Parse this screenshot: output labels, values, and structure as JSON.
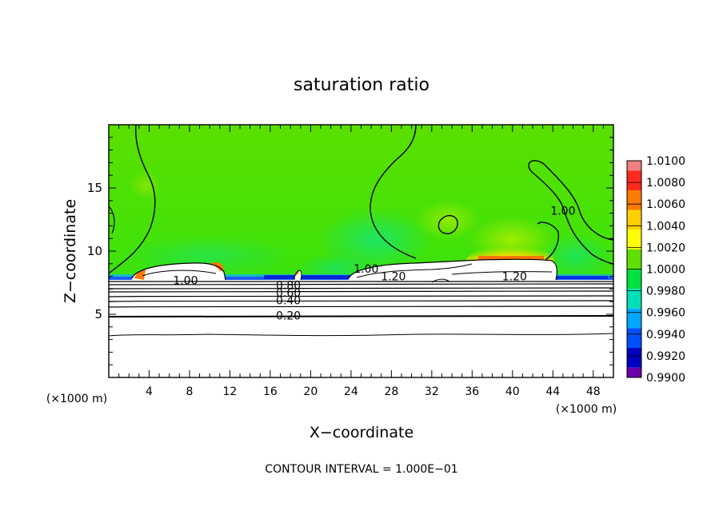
{
  "chart_data": {
    "type": "heatmap",
    "title": "saturation ratio",
    "xlabel": "X−coordinate",
    "ylabel": "Z−coordinate",
    "x_unit_left": "(×1000 m)",
    "x_unit_right": "(×1000 m)",
    "xlim": [
      0,
      50
    ],
    "ylim": [
      0,
      20
    ],
    "x_ticks": [
      4,
      8,
      12,
      16,
      20,
      24,
      28,
      32,
      36,
      40,
      44,
      48
    ],
    "y_ticks": [
      5,
      10,
      15
    ],
    "colorbar": {
      "levels": [
        1.01,
        1.008,
        1.006,
        1.004,
        1.002,
        1.0,
        0.998,
        0.996,
        0.994,
        0.992,
        0.99
      ],
      "labels": [
        "1.0100",
        "1.0080",
        "1.0060",
        "1.0040",
        "1.0020",
        "1.0000",
        "0.9980",
        "0.9960",
        "0.9940",
        "0.9920",
        "0.9900"
      ],
      "colors": [
        "#f08080",
        "#ff2a1e",
        "#ff7a00",
        "#ffd000",
        "#ffff00",
        "#5ee000",
        "#00e040",
        "#00e0b8",
        "#00a8ff",
        "#0050ff",
        "#0000c0",
        "#6a00a8"
      ]
    },
    "contour_labels": [
      {
        "text": "1.00",
        "x": 7.6,
        "z": 7.7
      },
      {
        "text": "0.80",
        "x": 17.8,
        "z": 7.3
      },
      {
        "text": "0.60",
        "x": 17.8,
        "z": 6.7
      },
      {
        "text": "0.40",
        "x": 17.8,
        "z": 6.1
      },
      {
        "text": "0.20",
        "x": 17.8,
        "z": 4.9
      },
      {
        "text": "1.00",
        "x": 25.5,
        "z": 8.6
      },
      {
        "text": "1.20",
        "x": 28.2,
        "z": 8.0
      },
      {
        "text": "1.20",
        "x": 40.2,
        "z": 8.0
      },
      {
        "text": "1.00",
        "x": 45.0,
        "z": 13.2
      }
    ],
    "footnote": "CONTOUR INTERVAL = 1.000E−01"
  }
}
